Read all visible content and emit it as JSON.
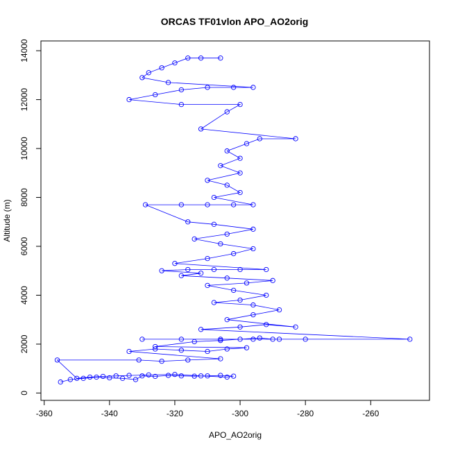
{
  "chart_data": {
    "type": "scatter",
    "title": "ORCAS TF01vlon APO_AO2orig",
    "xlabel": "APO_AO2orig",
    "ylabel": "Altitude (m)",
    "xlim": [
      -361,
      -242
    ],
    "ylim": [
      -300,
      14400
    ],
    "x_ticks": [
      -360,
      -340,
      -320,
      -300,
      -280,
      -260
    ],
    "y_ticks": [
      0,
      2000,
      4000,
      6000,
      8000,
      10000,
      12000,
      14000
    ],
    "series": [
      {
        "style": "points-and-lines",
        "marker": "open-circle",
        "color": "#0000ff",
        "points": [
          [
            -355,
            450
          ],
          [
            -352,
            550
          ],
          [
            -348,
            600
          ],
          [
            -344,
            650
          ],
          [
            -340,
            620
          ],
          [
            -336,
            600
          ],
          [
            -332,
            550
          ],
          [
            -330,
            700
          ],
          [
            -326,
            680
          ],
          [
            -322,
            720
          ],
          [
            -318,
            700
          ],
          [
            -314,
            690
          ],
          [
            -310,
            700
          ],
          [
            -306,
            720
          ],
          [
            -302,
            690
          ],
          [
            -304,
            650
          ],
          [
            -312,
            700
          ],
          [
            -320,
            760
          ],
          [
            -328,
            740
          ],
          [
            -334,
            720
          ],
          [
            -338,
            700
          ],
          [
            -342,
            680
          ],
          [
            -346,
            650
          ],
          [
            -350,
            600
          ],
          [
            -356,
            1350
          ],
          [
            -331,
            1350
          ],
          [
            -324,
            1300
          ],
          [
            -316,
            1350
          ],
          [
            -306,
            1400
          ],
          [
            -334,
            1700
          ],
          [
            -326,
            1800
          ],
          [
            -318,
            1750
          ],
          [
            -310,
            1700
          ],
          [
            -304,
            1800
          ],
          [
            -298,
            1850
          ],
          [
            -326,
            1900
          ],
          [
            -314,
            2100
          ],
          [
            -306,
            2150
          ],
          [
            -300,
            2200
          ],
          [
            -294,
            2250
          ],
          [
            -290,
            2200
          ],
          [
            -330,
            2200
          ],
          [
            -318,
            2200
          ],
          [
            -306,
            2200
          ],
          [
            -296,
            2200
          ],
          [
            -288,
            2200
          ],
          [
            -280,
            2200
          ],
          [
            -248,
            2200
          ],
          [
            -312,
            2600
          ],
          [
            -300,
            2700
          ],
          [
            -292,
            2800
          ],
          [
            -283,
            2700
          ],
          [
            -304,
            3000
          ],
          [
            -296,
            3200
          ],
          [
            -288,
            3400
          ],
          [
            -296,
            3600
          ],
          [
            -308,
            3700
          ],
          [
            -300,
            3800
          ],
          [
            -292,
            4000
          ],
          [
            -302,
            4200
          ],
          [
            -310,
            4400
          ],
          [
            -298,
            4500
          ],
          [
            -290,
            4600
          ],
          [
            -304,
            4700
          ],
          [
            -318,
            4800
          ],
          [
            -312,
            4900
          ],
          [
            -324,
            5000
          ],
          [
            -316,
            5050
          ],
          [
            -308,
            5050
          ],
          [
            -300,
            5050
          ],
          [
            -292,
            5050
          ],
          [
            -320,
            5300
          ],
          [
            -310,
            5500
          ],
          [
            -302,
            5700
          ],
          [
            -296,
            5900
          ],
          [
            -306,
            6100
          ],
          [
            -314,
            6300
          ],
          [
            -304,
            6500
          ],
          [
            -296,
            6700
          ],
          [
            -308,
            6900
          ],
          [
            -316,
            7000
          ],
          [
            -329,
            7700
          ],
          [
            -318,
            7700
          ],
          [
            -310,
            7700
          ],
          [
            -302,
            7700
          ],
          [
            -296,
            7700
          ],
          [
            -308,
            8000
          ],
          [
            -300,
            8200
          ],
          [
            -304,
            8500
          ],
          [
            -310,
            8700
          ],
          [
            -300,
            9000
          ],
          [
            -306,
            9300
          ],
          [
            -300,
            9600
          ],
          [
            -304,
            9900
          ],
          [
            -298,
            10200
          ],
          [
            -294,
            10400
          ],
          [
            -283,
            10400
          ],
          [
            -312,
            10800
          ],
          [
            -304,
            11500
          ],
          [
            -300,
            11800
          ],
          [
            -318,
            11800
          ],
          [
            -334,
            12000
          ],
          [
            -326,
            12200
          ],
          [
            -318,
            12400
          ],
          [
            -310,
            12500
          ],
          [
            -302,
            12500
          ],
          [
            -296,
            12500
          ],
          [
            -322,
            12700
          ],
          [
            -330,
            12900
          ],
          [
            -328,
            13100
          ],
          [
            -324,
            13300
          ],
          [
            -320,
            13500
          ],
          [
            -316,
            13700
          ],
          [
            -312,
            13700
          ],
          [
            -306,
            13700
          ]
        ]
      }
    ],
    "grid": false,
    "legend": "none"
  }
}
